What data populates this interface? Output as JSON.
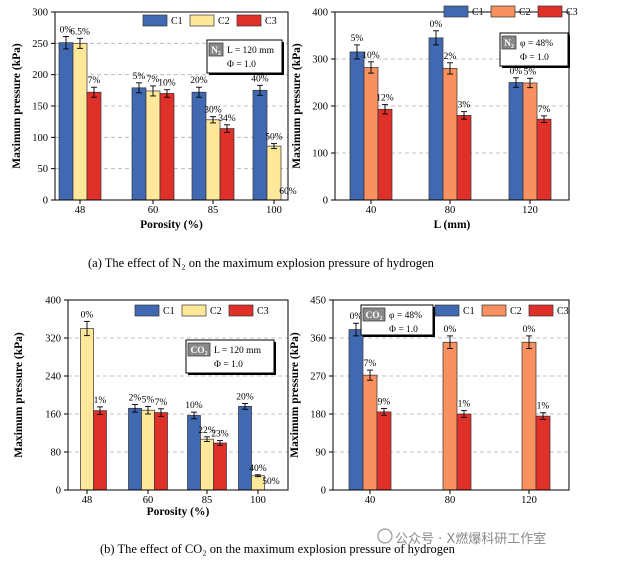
{
  "captions": {
    "a": "(a) The effect of N₂ on the maximum explosion pressure of hydrogen",
    "b": "(b) The effect of CO₂ on the maximum explosion pressure of hydrogen"
  },
  "watermark": "公众号 · X燃爆科研工作室",
  "colors": {
    "C1": "#4169b2",
    "C2_a": "#ffe89a",
    "C3": "#e0302a",
    "C2_b": "#f89060"
  },
  "chart_data": [
    {
      "id": "a1",
      "type": "bar",
      "xlabel": "Porosity (%)",
      "ylabel": "Maximum pressure (kPa)",
      "ylim": [
        0,
        300
      ],
      "yticks": [
        0,
        50,
        100,
        150,
        200,
        250,
        300
      ],
      "categories": [
        "48",
        "60",
        "85",
        "100"
      ],
      "series": [
        {
          "name": "C1",
          "values": [
            251,
            179,
            172,
            175
          ],
          "errors": [
            10,
            8,
            8,
            8
          ],
          "labels": [
            "0%",
            "5%",
            "20%",
            "40%"
          ]
        },
        {
          "name": "C2",
          "values": [
            250,
            174,
            128,
            86
          ],
          "errors": [
            8,
            8,
            5,
            4
          ],
          "labels": [
            "6.5%",
            "7%",
            "30%",
            "50%"
          ]
        },
        {
          "name": "C3",
          "values": [
            172,
            170,
            114,
            0
          ],
          "errors": [
            8,
            6,
            6,
            0
          ],
          "labels": [
            "7%",
            "10%",
            "34%",
            "60%"
          ]
        }
      ],
      "annotation": {
        "gas": "N₂",
        "line1": "L = 120 mm",
        "line2": "Φ = 1.0"
      },
      "legend_position": "top-right"
    },
    {
      "id": "a2",
      "type": "bar",
      "xlabel": "L (mm)",
      "ylabel": "Maximum pressure (kPa)",
      "ylim": [
        0,
        400
      ],
      "yticks": [
        0,
        100,
        200,
        300,
        400
      ],
      "categories": [
        "40",
        "80",
        "120"
      ],
      "series": [
        {
          "name": "C1",
          "values": [
            315,
            345,
            250
          ],
          "errors": [
            15,
            15,
            10
          ],
          "labels": [
            "5%",
            "0%",
            "0%"
          ]
        },
        {
          "name": "C2",
          "values": [
            282,
            280,
            249
          ],
          "errors": [
            12,
            12,
            10
          ],
          "labels": [
            "10%",
            "2%",
            "5%"
          ]
        },
        {
          "name": "C3",
          "values": [
            193,
            180,
            172
          ],
          "errors": [
            10,
            8,
            7
          ],
          "labels": [
            "12%",
            "3%",
            "7%"
          ]
        }
      ],
      "annotation": {
        "gas": "N₂",
        "line1": "φ = 48%",
        "line2": "Φ = 1.0"
      },
      "legend_position": "top-right"
    },
    {
      "id": "b1",
      "type": "bar",
      "xlabel": "Porosity (%)",
      "ylabel": "Maximum pressure (kPa)",
      "ylim": [
        0,
        400
      ],
      "yticks": [
        0,
        80,
        160,
        240,
        320,
        400
      ],
      "categories": [
        "48",
        "60",
        "85",
        "100"
      ],
      "series": [
        {
          "name": "C1",
          "values": [
            0,
            172,
            157,
            176
          ],
          "errors": [
            0,
            8,
            7,
            6
          ],
          "labels": [
            "",
            "2%",
            "10%",
            "20%"
          ]
        },
        {
          "name": "C2",
          "values": [
            340,
            168,
            107,
            30
          ],
          "errors": [
            15,
            8,
            5,
            2
          ],
          "labels": [
            "0%",
            "5%",
            "22%",
            "40%"
          ]
        },
        {
          "name": "C3",
          "values": [
            167,
            163,
            99,
            0
          ],
          "errors": [
            8,
            8,
            5,
            0
          ],
          "labels": [
            "1%",
            "7%",
            "23%",
            "50%"
          ]
        }
      ],
      "annotation": {
        "gas": "CO₂",
        "line1": "L = 120 mm",
        "line2": "Φ = 1.0"
      },
      "legend_position": "top-right"
    },
    {
      "id": "b2",
      "type": "bar",
      "xlabel": "",
      "ylabel": "Maximum pressure (kPa)",
      "ylim": [
        0,
        450
      ],
      "yticks": [
        0,
        90,
        180,
        270,
        360,
        450
      ],
      "categories": [
        "40",
        "80",
        "120"
      ],
      "series": [
        {
          "name": "C1",
          "values": [
            380,
            0,
            0
          ],
          "errors": [
            15,
            0,
            0
          ],
          "labels": [
            "0%",
            "",
            ""
          ]
        },
        {
          "name": "C2",
          "values": [
            272,
            350,
            350
          ],
          "errors": [
            12,
            15,
            15
          ],
          "labels": [
            "7%",
            "0%",
            "0%"
          ]
        },
        {
          "name": "C3",
          "values": [
            185,
            180,
            175
          ],
          "errors": [
            8,
            8,
            8
          ],
          "labels": [
            "9%",
            "1%",
            "1%"
          ]
        }
      ],
      "annotation": {
        "gas": "CO₂",
        "line1": "φ = 48%",
        "line2": "Φ = 1.0"
      },
      "legend_position": "top-right"
    }
  ]
}
